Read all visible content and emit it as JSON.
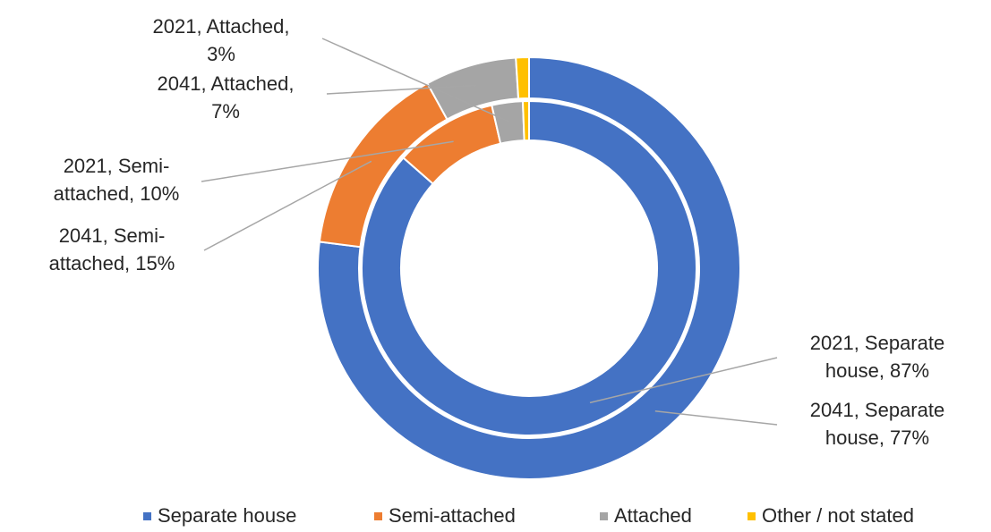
{
  "chart_data": {
    "type": "doughnut",
    "categories": [
      "Separate house",
      "Semi-attached",
      "Attached",
      "Other / not stated"
    ],
    "colors": [
      "#4472c4",
      "#ed7d31",
      "#a5a5a5",
      "#ffc000"
    ],
    "series": [
      {
        "values": [
          87,
          10,
          3,
          0.6
        ],
        "value_labels": [
          "2021, Separate house, 87%",
          "2021, Semi-attached, 10%",
          "2021, Attached, 3%",
          null
        ]
      },
      {
        "values": [
          77,
          15,
          7,
          1
        ],
        "value_labels": [
          "2041, Separate house, 77%",
          "2041, Semi-attached, 15%",
          "2041, Attached, 7%",
          null
        ]
      }
    ],
    "legend": "bottom"
  }
}
